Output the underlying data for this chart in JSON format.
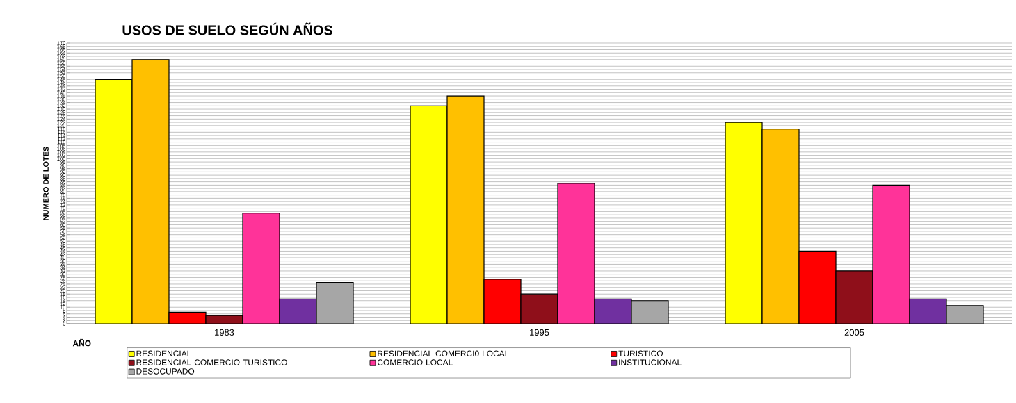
{
  "chart_data": {
    "type": "bar",
    "title": "USOS DE SUELO SEGÚN AÑOS",
    "xlabel": "AÑO",
    "ylabel": "NUMERO DE LOTES",
    "categories": [
      "1983",
      "1995",
      "2005"
    ],
    "series": [
      {
        "name": "RESIDENCIAL",
        "color": "#ffff00",
        "values": [
          148,
          132,
          122
        ]
      },
      {
        "name": "RESIDENCIAL COMERCI0 LOCAL",
        "color": "#ffc000",
        "values": [
          160,
          138,
          118
        ]
      },
      {
        "name": "TURISTICO",
        "color": "#ff0000",
        "values": [
          7,
          27,
          44
        ]
      },
      {
        "name": "RESIDENCIAL COMERCIO TURISTICO",
        "color": "#8f0f1a",
        "values": [
          5,
          18,
          32
        ]
      },
      {
        "name": "COMERCIO LOCAL",
        "color": "#ff3399",
        "values": [
          67,
          85,
          84
        ]
      },
      {
        "name": "INSTITUCIONAL",
        "color": "#7030a0",
        "values": [
          15,
          15,
          15
        ]
      },
      {
        "name": "DESOCUPADO",
        "color": "#a6a6a6",
        "values": [
          25,
          14,
          11
        ]
      }
    ],
    "ylim": [
      0,
      170
    ],
    "yticks": [
      0,
      2,
      4,
      6,
      8,
      10,
      12,
      14,
      16,
      18,
      20,
      22,
      24,
      26,
      28,
      30,
      32,
      34,
      36,
      38,
      40,
      42,
      44,
      46,
      48,
      50,
      52,
      54,
      56,
      58,
      60,
      62,
      64,
      66,
      68,
      70,
      72,
      74,
      76,
      78,
      80,
      82,
      84,
      86,
      88,
      90,
      92,
      94,
      96,
      98,
      100,
      102,
      104,
      106,
      108,
      110,
      112,
      114,
      116,
      118,
      120,
      122,
      124,
      126,
      128,
      130,
      132,
      134,
      136,
      138,
      140,
      142,
      144,
      146,
      148,
      150,
      152,
      154,
      156,
      158,
      160,
      162,
      164,
      166,
      168,
      170
    ],
    "grid": "y",
    "legend": "bottom"
  }
}
